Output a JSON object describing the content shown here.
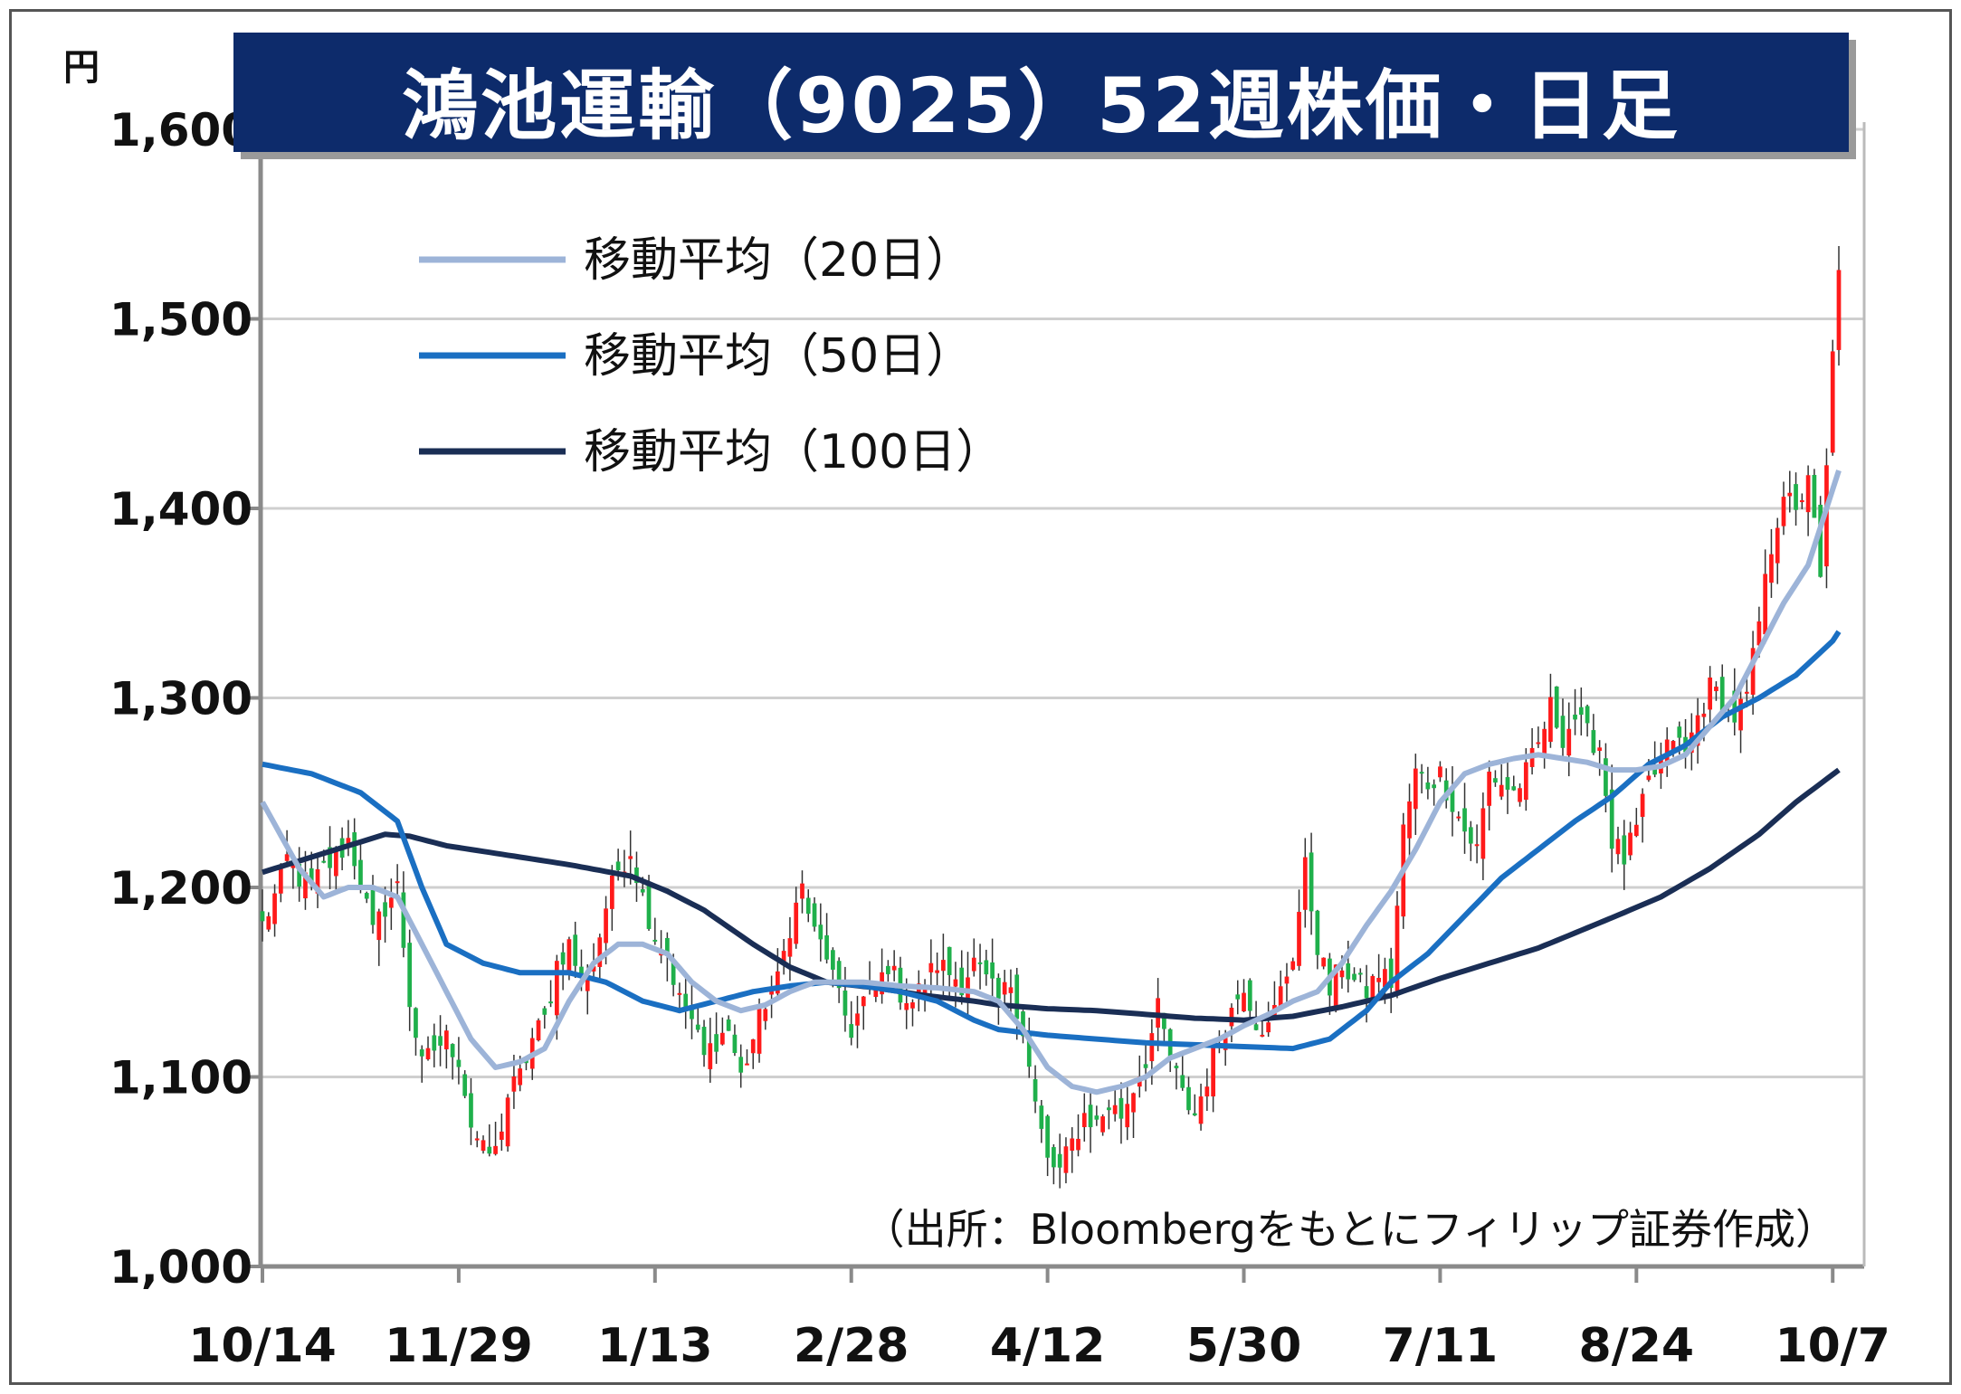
{
  "title": "鴻池運輸（9025）52週株価・日足",
  "unit": "円",
  "source": "（出所：Bloombergをもとにフィリップ証券作成）",
  "colors": {
    "title_bg": "#0d2b6b",
    "up_candle": "#ff1a1a",
    "down_candle": "#1fb04b",
    "ma20": "#9db4d8",
    "ma50": "#1a6fc2",
    "ma100": "#1a2e55",
    "grid": "#cfcfcf"
  },
  "chart_data": {
    "type": "candlestick",
    "title": "鴻池運輸（9025）52週株価・日足",
    "ylabel": "円",
    "ylim": [
      1000,
      1600
    ],
    "yticks": [
      "1,000",
      "1,100",
      "1,200",
      "1,300",
      "1,400",
      "1,500",
      "1,600"
    ],
    "ytick_values": [
      1000,
      1100,
      1200,
      1300,
      1400,
      1500,
      1600
    ],
    "xticks": [
      "10/14",
      "11/29",
      "1/13",
      "2/28",
      "4/12",
      "5/30",
      "7/11",
      "8/24",
      "10/7"
    ],
    "xtick_index": [
      0,
      32,
      64,
      96,
      128,
      160,
      192,
      224,
      256
    ],
    "num_days": 258,
    "grid": true,
    "legend_position": "top-left",
    "legend": [
      {
        "key": "ma20",
        "label": "移動平均（20日）"
      },
      {
        "key": "ma50",
        "label": "移動平均（50日）"
      },
      {
        "key": "ma100",
        "label": "移動平均（100日）"
      }
    ],
    "close_anchors": [
      [
        0,
        1180
      ],
      [
        2,
        1195
      ],
      [
        4,
        1215
      ],
      [
        6,
        1205
      ],
      [
        8,
        1200
      ],
      [
        10,
        1210
      ],
      [
        12,
        1215
      ],
      [
        14,
        1225
      ],
      [
        16,
        1205
      ],
      [
        18,
        1175
      ],
      [
        20,
        1190
      ],
      [
        22,
        1200
      ],
      [
        24,
        1140
      ],
      [
        26,
        1105
      ],
      [
        28,
        1115
      ],
      [
        30,
        1120
      ],
      [
        32,
        1110
      ],
      [
        34,
        1075
      ],
      [
        36,
        1060
      ],
      [
        38,
        1060
      ],
      [
        40,
        1090
      ],
      [
        42,
        1100
      ],
      [
        44,
        1120
      ],
      [
        46,
        1130
      ],
      [
        48,
        1160
      ],
      [
        50,
        1170
      ],
      [
        52,
        1150
      ],
      [
        54,
        1160
      ],
      [
        56,
        1190
      ],
      [
        58,
        1210
      ],
      [
        60,
        1220
      ],
      [
        62,
        1195
      ],
      [
        64,
        1175
      ],
      [
        66,
        1165
      ],
      [
        68,
        1140
      ],
      [
        70,
        1130
      ],
      [
        72,
        1110
      ],
      [
        74,
        1120
      ],
      [
        76,
        1125
      ],
      [
        78,
        1100
      ],
      [
        80,
        1120
      ],
      [
        82,
        1140
      ],
      [
        84,
        1150
      ],
      [
        86,
        1180
      ],
      [
        88,
        1200
      ],
      [
        90,
        1175
      ],
      [
        92,
        1165
      ],
      [
        94,
        1140
      ],
      [
        96,
        1125
      ],
      [
        98,
        1140
      ],
      [
        100,
        1145
      ],
      [
        102,
        1160
      ],
      [
        104,
        1145
      ],
      [
        106,
        1140
      ],
      [
        108,
        1150
      ],
      [
        110,
        1160
      ],
      [
        112,
        1155
      ],
      [
        114,
        1150
      ],
      [
        116,
        1160
      ],
      [
        118,
        1150
      ],
      [
        120,
        1140
      ],
      [
        122,
        1150
      ],
      [
        124,
        1125
      ],
      [
        126,
        1085
      ],
      [
        128,
        1055
      ],
      [
        130,
        1050
      ],
      [
        132,
        1065
      ],
      [
        134,
        1080
      ],
      [
        136,
        1075
      ],
      [
        138,
        1085
      ],
      [
        140,
        1080
      ],
      [
        142,
        1095
      ],
      [
        144,
        1110
      ],
      [
        146,
        1135
      ],
      [
        148,
        1110
      ],
      [
        150,
        1090
      ],
      [
        152,
        1080
      ],
      [
        154,
        1100
      ],
      [
        156,
        1120
      ],
      [
        158,
        1135
      ],
      [
        160,
        1150
      ],
      [
        162,
        1130
      ],
      [
        164,
        1125
      ],
      [
        166,
        1145
      ],
      [
        168,
        1165
      ],
      [
        170,
        1210
      ],
      [
        172,
        1170
      ],
      [
        174,
        1145
      ],
      [
        176,
        1160
      ],
      [
        178,
        1150
      ],
      [
        180,
        1145
      ],
      [
        182,
        1155
      ],
      [
        184,
        1150
      ],
      [
        186,
        1230
      ],
      [
        188,
        1260
      ],
      [
        190,
        1255
      ],
      [
        192,
        1260
      ],
      [
        194,
        1245
      ],
      [
        196,
        1230
      ],
      [
        198,
        1220
      ],
      [
        200,
        1260
      ],
      [
        202,
        1255
      ],
      [
        204,
        1250
      ],
      [
        206,
        1260
      ],
      [
        208,
        1275
      ],
      [
        210,
        1295
      ],
      [
        212,
        1280
      ],
      [
        214,
        1290
      ],
      [
        216,
        1280
      ],
      [
        218,
        1275
      ],
      [
        220,
        1225
      ],
      [
        222,
        1215
      ],
      [
        224,
        1230
      ],
      [
        226,
        1255
      ],
      [
        228,
        1265
      ],
      [
        230,
        1280
      ],
      [
        232,
        1270
      ],
      [
        234,
        1290
      ],
      [
        236,
        1305
      ],
      [
        238,
        1300
      ],
      [
        240,
        1290
      ],
      [
        242,
        1300
      ],
      [
        244,
        1340
      ],
      [
        246,
        1380
      ],
      [
        248,
        1410
      ],
      [
        250,
        1395
      ],
      [
        252,
        1420
      ],
      [
        254,
        1360
      ],
      [
        256,
        1480
      ],
      [
        257,
        1530
      ]
    ],
    "ma20_anchors": [
      [
        0,
        1245
      ],
      [
        6,
        1210
      ],
      [
        10,
        1195
      ],
      [
        14,
        1200
      ],
      [
        18,
        1200
      ],
      [
        22,
        1195
      ],
      [
        26,
        1170
      ],
      [
        30,
        1145
      ],
      [
        34,
        1120
      ],
      [
        38,
        1105
      ],
      [
        42,
        1108
      ],
      [
        46,
        1115
      ],
      [
        50,
        1140
      ],
      [
        54,
        1160
      ],
      [
        58,
        1170
      ],
      [
        62,
        1170
      ],
      [
        66,
        1165
      ],
      [
        70,
        1150
      ],
      [
        74,
        1140
      ],
      [
        78,
        1135
      ],
      [
        82,
        1138
      ],
      [
        86,
        1145
      ],
      [
        90,
        1150
      ],
      [
        94,
        1150
      ],
      [
        98,
        1150
      ],
      [
        104,
        1148
      ],
      [
        110,
        1147
      ],
      [
        116,
        1145
      ],
      [
        120,
        1140
      ],
      [
        124,
        1125
      ],
      [
        128,
        1105
      ],
      [
        132,
        1095
      ],
      [
        136,
        1092
      ],
      [
        140,
        1095
      ],
      [
        144,
        1100
      ],
      [
        148,
        1110
      ],
      [
        152,
        1115
      ],
      [
        156,
        1120
      ],
      [
        160,
        1127
      ],
      [
        164,
        1133
      ],
      [
        168,
        1140
      ],
      [
        172,
        1145
      ],
      [
        176,
        1160
      ],
      [
        180,
        1180
      ],
      [
        184,
        1198
      ],
      [
        188,
        1220
      ],
      [
        192,
        1245
      ],
      [
        196,
        1260
      ],
      [
        200,
        1265
      ],
      [
        204,
        1268
      ],
      [
        208,
        1270
      ],
      [
        212,
        1268
      ],
      [
        216,
        1266
      ],
      [
        220,
        1262
      ],
      [
        224,
        1262
      ],
      [
        228,
        1264
      ],
      [
        232,
        1270
      ],
      [
        236,
        1285
      ],
      [
        240,
        1300
      ],
      [
        244,
        1325
      ],
      [
        248,
        1350
      ],
      [
        252,
        1370
      ],
      [
        256,
        1410
      ],
      [
        257,
        1420
      ]
    ],
    "ma50_anchors": [
      [
        0,
        1265
      ],
      [
        8,
        1260
      ],
      [
        16,
        1250
      ],
      [
        22,
        1235
      ],
      [
        26,
        1200
      ],
      [
        30,
        1170
      ],
      [
        36,
        1160
      ],
      [
        42,
        1155
      ],
      [
        50,
        1155
      ],
      [
        56,
        1150
      ],
      [
        62,
        1140
      ],
      [
        68,
        1135
      ],
      [
        74,
        1140
      ],
      [
        80,
        1145
      ],
      [
        86,
        1148
      ],
      [
        92,
        1150
      ],
      [
        98,
        1148
      ],
      [
        104,
        1145
      ],
      [
        110,
        1140
      ],
      [
        116,
        1130
      ],
      [
        120,
        1125
      ],
      [
        128,
        1122
      ],
      [
        136,
        1120
      ],
      [
        144,
        1118
      ],
      [
        152,
        1117
      ],
      [
        160,
        1116
      ],
      [
        168,
        1115
      ],
      [
        174,
        1120
      ],
      [
        180,
        1135
      ],
      [
        184,
        1150
      ],
      [
        190,
        1165
      ],
      [
        196,
        1185
      ],
      [
        202,
        1205
      ],
      [
        208,
        1220
      ],
      [
        214,
        1235
      ],
      [
        220,
        1248
      ],
      [
        226,
        1265
      ],
      [
        232,
        1275
      ],
      [
        238,
        1290
      ],
      [
        244,
        1300
      ],
      [
        250,
        1312
      ],
      [
        256,
        1330
      ],
      [
        257,
        1335
      ]
    ],
    "ma100_anchors": [
      [
        0,
        1208
      ],
      [
        10,
        1218
      ],
      [
        20,
        1228
      ],
      [
        24,
        1227
      ],
      [
        30,
        1222
      ],
      [
        40,
        1217
      ],
      [
        50,
        1212
      ],
      [
        60,
        1206
      ],
      [
        66,
        1198
      ],
      [
        72,
        1188
      ],
      [
        80,
        1170
      ],
      [
        86,
        1158
      ],
      [
        92,
        1150
      ],
      [
        100,
        1147
      ],
      [
        108,
        1143
      ],
      [
        116,
        1140
      ],
      [
        120,
        1138
      ],
      [
        128,
        1136
      ],
      [
        136,
        1135
      ],
      [
        144,
        1133
      ],
      [
        152,
        1131
      ],
      [
        160,
        1130
      ],
      [
        168,
        1132
      ],
      [
        176,
        1137
      ],
      [
        184,
        1143
      ],
      [
        192,
        1152
      ],
      [
        200,
        1160
      ],
      [
        208,
        1168
      ],
      [
        214,
        1176
      ],
      [
        220,
        1184
      ],
      [
        228,
        1195
      ],
      [
        236,
        1210
      ],
      [
        244,
        1228
      ],
      [
        250,
        1245
      ],
      [
        257,
        1262
      ]
    ]
  }
}
